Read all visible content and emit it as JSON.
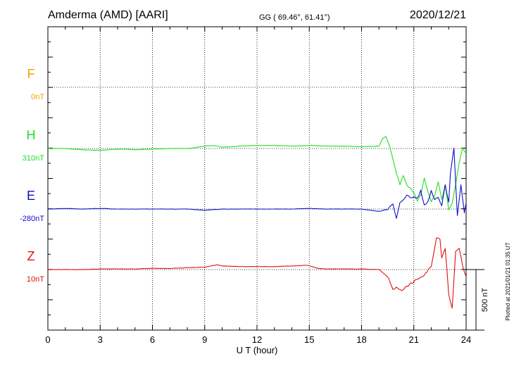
{
  "header": {
    "station": "Amderma (AMD)  [AARI]",
    "coords": "GG ( 69.46°,  61.41°)",
    "date": "2020/12/21"
  },
  "plotted_note": "Plotted at 2021/01/21 01:35 UT",
  "scale_label": "500 nT",
  "colors": {
    "F": "#f5a000",
    "H": "#22dd22",
    "E": "#1010cc",
    "Z": "#e01010",
    "grid": "#000000"
  },
  "chart_data": {
    "type": "line",
    "xlabel": "U T (hour)",
    "xlim": [
      0,
      24
    ],
    "x_ticks": [
      "0",
      "3",
      "6",
      "9",
      "12",
      "15",
      "18",
      "21",
      "24"
    ],
    "grid": true,
    "scale_bar_nT": 500,
    "components": [
      {
        "name": "F",
        "base_label": "0nT"
      },
      {
        "name": "H",
        "base_label": "310nT"
      },
      {
        "name": "E",
        "base_label": "-280nT"
      },
      {
        "name": "Z",
        "base_label": "10nT"
      }
    ],
    "series": [
      {
        "name": "H",
        "baseline_nT": 310,
        "x": [
          0,
          1,
          2,
          3,
          4,
          5,
          6,
          7,
          8,
          9,
          9.5,
          10,
          11,
          12,
          13,
          14,
          15,
          16,
          17,
          18,
          19,
          19.2,
          19.4,
          19.6,
          19.8,
          20,
          20.2,
          20.4,
          20.6,
          20.8,
          21,
          21.2,
          21.4,
          21.6,
          21.8,
          22,
          22.2,
          22.4,
          22.6,
          22.8,
          23,
          23.2,
          23.4,
          23.6,
          23.8,
          24
        ],
        "values": [
          0,
          0,
          -10,
          -15,
          -5,
          -10,
          -5,
          0,
          0,
          20,
          25,
          10,
          20,
          25,
          25,
          20,
          25,
          20,
          20,
          15,
          20,
          80,
          100,
          20,
          -80,
          -200,
          -300,
          -220,
          -300,
          -330,
          -370,
          -430,
          -380,
          -250,
          -350,
          -440,
          -380,
          -280,
          -420,
          -300,
          -500,
          -450,
          -300,
          -120,
          10,
          -40
        ]
      },
      {
        "name": "E",
        "baseline_nT": -280,
        "x": [
          0,
          1,
          2,
          3,
          4,
          5,
          6,
          7,
          8,
          9,
          10,
          11,
          12,
          13,
          14,
          15,
          16,
          17,
          18,
          19,
          19.5,
          19.8,
          20,
          20.2,
          20.4,
          20.6,
          20.8,
          21,
          21.2,
          21.4,
          21.6,
          21.8,
          22,
          22.2,
          22.4,
          22.6,
          22.8,
          23,
          23.1,
          23.3,
          23.5,
          23.7,
          23.9,
          24
        ],
        "values": [
          0,
          5,
          0,
          5,
          0,
          0,
          0,
          0,
          0,
          -10,
          0,
          0,
          0,
          0,
          0,
          5,
          0,
          0,
          0,
          -20,
          0,
          40,
          -80,
          50,
          80,
          120,
          90,
          100,
          90,
          150,
          30,
          60,
          150,
          80,
          100,
          30,
          200,
          50,
          300,
          500,
          -50,
          200,
          -30,
          50
        ]
      },
      {
        "name": "Z",
        "baseline_nT": 10,
        "x": [
          0,
          1,
          2,
          3,
          4,
          5,
          6,
          7,
          8,
          9,
          9.7,
          10,
          11,
          12,
          13,
          14,
          14.9,
          15.5,
          16,
          17,
          18,
          19,
          19.5,
          19.8,
          20,
          20.3,
          20.6,
          21,
          21.3,
          21.6,
          22,
          22.3,
          22.5,
          22.6,
          22.8,
          23,
          23.2,
          23.4,
          23.6,
          23.8,
          24
        ],
        "values": [
          0,
          0,
          0,
          5,
          5,
          5,
          10,
          10,
          15,
          20,
          40,
          30,
          25,
          25,
          25,
          30,
          35,
          10,
          5,
          5,
          5,
          0,
          -60,
          -160,
          -150,
          -170,
          -140,
          -100,
          -70,
          -50,
          30,
          260,
          250,
          100,
          180,
          -200,
          -320,
          150,
          180,
          30,
          -60
        ]
      }
    ]
  }
}
